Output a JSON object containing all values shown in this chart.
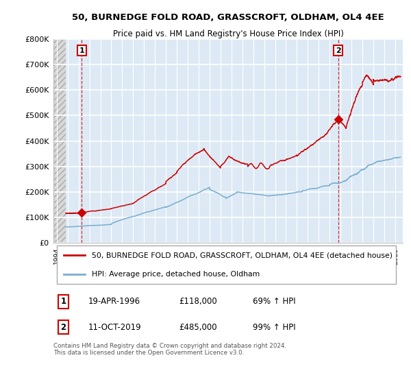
{
  "title1": "50, BURNEDGE FOLD ROAD, GRASSCROFT, OLDHAM, OL4 4EE",
  "title2": "Price paid vs. HM Land Registry's House Price Index (HPI)",
  "ylim": [
    0,
    800000
  ],
  "yticks": [
    0,
    100000,
    200000,
    300000,
    400000,
    500000,
    600000,
    700000,
    800000
  ],
  "ytick_labels": [
    "£0",
    "£100K",
    "£200K",
    "£300K",
    "£400K",
    "£500K",
    "£600K",
    "£700K",
    "£800K"
  ],
  "sale1_year": 1996.3,
  "sale1_price": 118000,
  "sale1_label": "1",
  "sale2_year": 2019.78,
  "sale2_price": 485000,
  "sale2_label": "2",
  "red_color": "#cc0000",
  "blue_color": "#7aadcf",
  "hatch_color": "#c8c8c8",
  "bg_color": "#ddeaf5",
  "grid_color": "#ffffff",
  "legend_label1": "50, BURNEDGE FOLD ROAD, GRASSCROFT, OLDHAM, OL4 4EE (detached house)",
  "legend_label2": "HPI: Average price, detached house, Oldham",
  "footer": "Contains HM Land Registry data © Crown copyright and database right 2024.\nThis data is licensed under the Open Government Licence v3.0.",
  "table_row1": [
    "1",
    "19-APR-1996",
    "£118,000",
    "69% ↑ HPI"
  ],
  "table_row2": [
    "2",
    "11-OCT-2019",
    "£485,000",
    "99% ↑ HPI"
  ],
  "xmin": 1993.7,
  "xmax": 2025.7,
  "hatch_end": 1994.83
}
